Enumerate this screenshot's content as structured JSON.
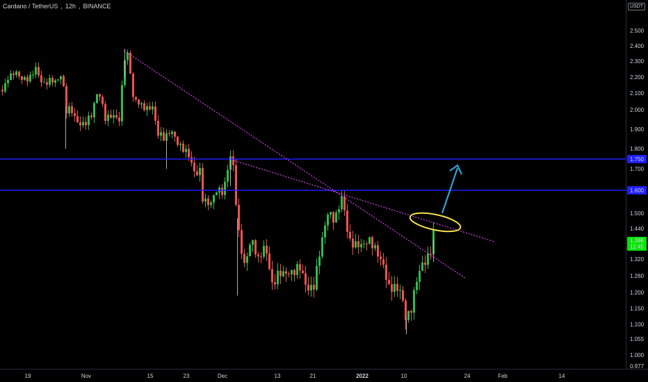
{
  "header": {
    "pair": "Cardano / TetherUS",
    "interval": "12h",
    "exchange": "BINANCE",
    "currency": "USDT"
  },
  "colors": {
    "up": "#26a69a",
    "up_bright": "#2ebd4c",
    "down": "#ef5350",
    "level_line": "#1f1fff",
    "trend_line": "#d946ef",
    "highlight": "#f5e14c",
    "arrow": "#2aa6d6",
    "last_price_bg": "#00e600"
  },
  "chart_data": {
    "type": "candlestick",
    "y_axis_ticks": [
      "2.500",
      "2.400",
      "2.300",
      "2.200",
      "2.100",
      "2.000",
      "1.900",
      "1.800",
      "1.700",
      "1.500",
      "1.440",
      "1.388",
      "1.320",
      "1.260",
      "1.200",
      "1.150",
      "1.100",
      "1.055",
      "1.000",
      "0.977"
    ],
    "x_axis_ticks": [
      "19",
      "Nov",
      "15",
      "23",
      "Dec",
      "13",
      "21",
      "2022",
      "10",
      "24",
      "Feb",
      "14"
    ],
    "levels": [
      {
        "label": "1.750",
        "value": 1.75
      },
      {
        "label": "1.600",
        "value": 1.6
      }
    ],
    "last_price": {
      "value": "1.388",
      "countdown": "11:45"
    },
    "price_range_shown": [
      0.977,
      2.5
    ],
    "trendlines": [
      {
        "from": [
          "Nov 08",
          2.37
        ],
        "to": [
          "Jan 27",
          1.28
        ],
        "style": "dotted"
      },
      {
        "from": [
          "Dec 04",
          1.75
        ],
        "to": [
          "Feb 02",
          1.39
        ],
        "style": "dotted"
      }
    ],
    "annotations": [
      "ellipse around breakout area near 1.44–1.50",
      "upward arrow toward 1.750"
    ]
  }
}
